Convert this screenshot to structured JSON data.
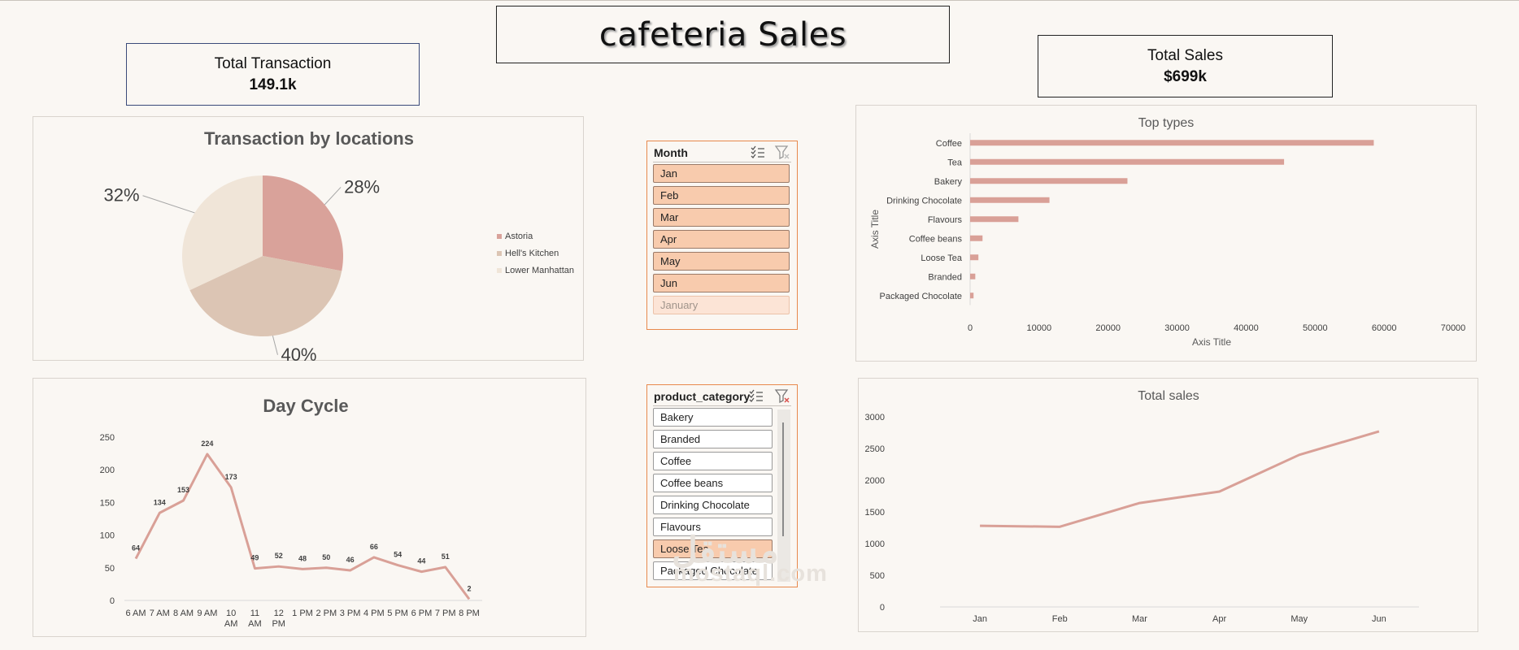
{
  "dashboard": {
    "title": "cafeteria Sales",
    "kpi_transactions": {
      "label": "Total Transaction",
      "value": "149.1k"
    },
    "kpi_sales": {
      "label": "Total Sales",
      "value": "$699k"
    },
    "watermark": "mostaql.com",
    "watermark_ar": "مستقل"
  },
  "slicers": {
    "month": {
      "title": "Month",
      "items": [
        {
          "label": "Jan",
          "state": "selected"
        },
        {
          "label": "Feb",
          "state": "selected"
        },
        {
          "label": "Mar",
          "state": "selected"
        },
        {
          "label": "Apr",
          "state": "selected"
        },
        {
          "label": "May",
          "state": "selected"
        },
        {
          "label": "Jun",
          "state": "selected"
        },
        {
          "label": "January",
          "state": "no-data"
        }
      ]
    },
    "product_category": {
      "title": "product_category",
      "items": [
        {
          "label": "Bakery",
          "state": "unselected"
        },
        {
          "label": "Branded",
          "state": "unselected"
        },
        {
          "label": "Coffee",
          "state": "unselected"
        },
        {
          "label": "Coffee beans",
          "state": "unselected"
        },
        {
          "label": "Drinking Chocolate",
          "state": "unselected"
        },
        {
          "label": "Flavours",
          "state": "unselected"
        },
        {
          "label": "Loose Tea",
          "state": "selected"
        },
        {
          "label": "Packaged Chocolate",
          "state": "unselected"
        }
      ]
    }
  },
  "colors": {
    "series": "#d9a097",
    "slice_astoria": "#d9a29a",
    "slice_hells": "#dcc5b4",
    "slice_lower": "#f0e5d8",
    "slicer_border": "#e8894d",
    "slicer_selected": "#f8cbad"
  },
  "chart_data": [
    {
      "type": "pie",
      "title": "Transaction by locations",
      "labels": [
        "Astoria",
        "Hell's Kitchen",
        "Lower Manhattan"
      ],
      "values": [
        28,
        40,
        32
      ],
      "value_labels": [
        "28%",
        "40%",
        "32%"
      ],
      "legend": "right"
    },
    {
      "type": "bar",
      "title": "Top types",
      "orientation": "horizontal",
      "categories": [
        "Coffee",
        "Tea",
        "Bakery",
        "Drinking Chocolate",
        "Flavours",
        "Coffee beans",
        "Loose Tea",
        "Branded",
        "Packaged Chocolate"
      ],
      "values": [
        58500,
        45500,
        22800,
        11500,
        7000,
        1800,
        1200,
        750,
        500
      ],
      "xlabel": "Axis Title",
      "ylabel": "Axis Title",
      "xlim": [
        0,
        70000
      ],
      "ticks": [
        "0",
        "10000",
        "20000",
        "30000",
        "40000",
        "50000",
        "60000",
        "70000"
      ]
    },
    {
      "type": "line",
      "title": "Day Cycle",
      "x": [
        "6 AM",
        "7 AM",
        "8 AM",
        "9 AM",
        "10 AM",
        "11 AM",
        "12 PM",
        "1 PM",
        "2 PM",
        "3 PM",
        "4 PM",
        "5 PM",
        "6 PM",
        "7 PM",
        "8 PM"
      ],
      "y": [
        64,
        134,
        153,
        224,
        173,
        49,
        52,
        48,
        50,
        46,
        66,
        54,
        44,
        51,
        2
      ],
      "ylim": [
        0,
        250
      ],
      "ticks": [
        "0",
        "50",
        "100",
        "150",
        "200",
        "250"
      ]
    },
    {
      "type": "line",
      "title": "Total sales",
      "x": [
        "Jan",
        "Feb",
        "Mar",
        "Apr",
        "May",
        "Jun"
      ],
      "y": [
        1280,
        1265,
        1640,
        1820,
        2400,
        2770
      ],
      "ylim": [
        0,
        3000
      ],
      "ticks": [
        "0",
        "500",
        "1000",
        "1500",
        "2000",
        "2500",
        "3000"
      ]
    }
  ]
}
